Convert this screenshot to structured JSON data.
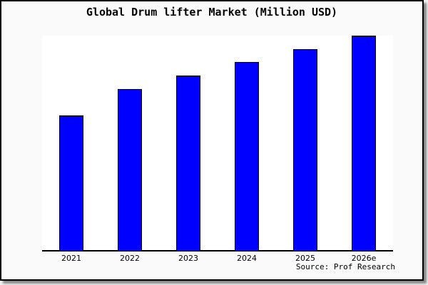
{
  "chart_data": {
    "type": "bar",
    "title": "Global Drum lifter Market (Million USD)",
    "categories": [
      "2021",
      "2022",
      "2023",
      "2024",
      "2025",
      "2026e"
    ],
    "values": [
      62.8,
      75.1,
      81.4,
      87.7,
      93.7,
      100
    ],
    "values_note": "relative bar heights in % of tallest bar; y-axis has no tick labels or gridlines in the image",
    "xlabel": "",
    "ylabel": "",
    "ylim": [
      0,
      100
    ],
    "grid": false,
    "legend": false,
    "bar_color": "#0000ff",
    "bar_border_color": "#000000",
    "source": "Source: Prof Research"
  },
  "source_caption": "Source: Prof Research",
  "colors": {
    "page_background": "#f2f2f2",
    "frame_background": "#fafafa",
    "plot_background": "#ffffff",
    "frame_border": "#000000",
    "axis_line": "#000000",
    "bar_fill": "#0000ff",
    "bar_border": "#000000",
    "text": "#000000"
  }
}
